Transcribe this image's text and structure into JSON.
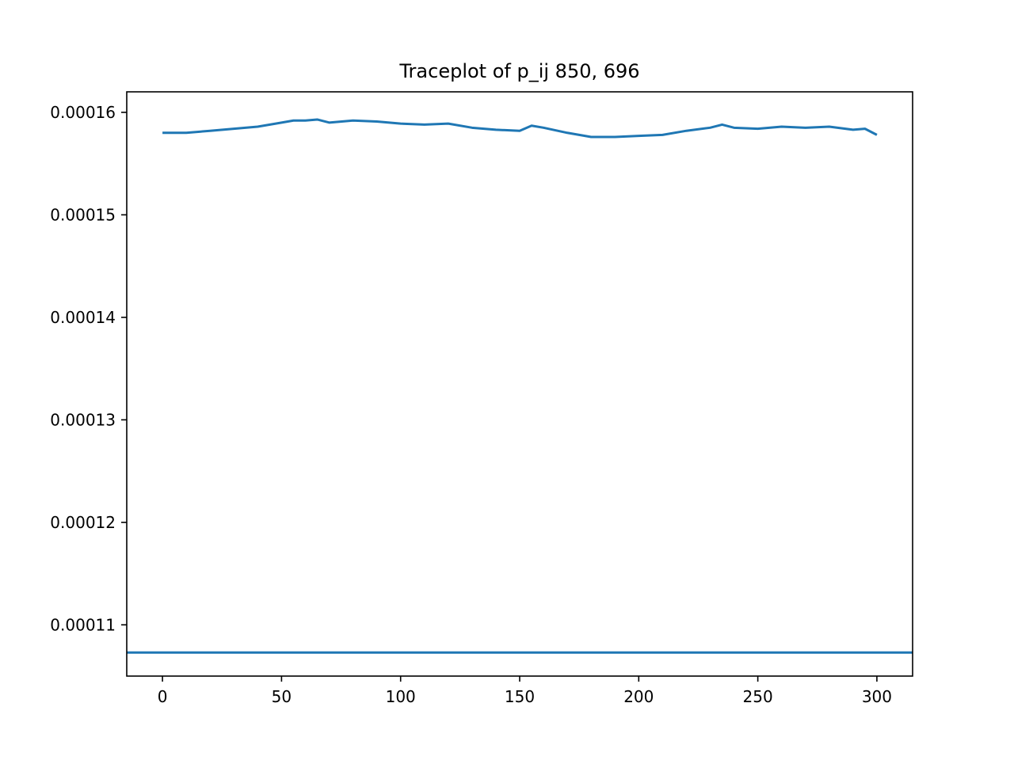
{
  "chart_data": {
    "type": "line",
    "title": "Traceplot of p_ij 850, 696",
    "xlabel": "",
    "ylabel": "",
    "xlim": [
      -15,
      315
    ],
    "ylim": [
      0.000105,
      0.000162
    ],
    "x_ticks": [
      0,
      50,
      100,
      150,
      200,
      250,
      300
    ],
    "x_tick_labels": [
      "0",
      "50",
      "100",
      "150",
      "200",
      "250",
      "300"
    ],
    "y_ticks": [
      0.00011,
      0.00012,
      0.00013,
      0.00014,
      0.00015,
      0.00016
    ],
    "y_tick_labels": [
      "0.00011",
      "0.00012",
      "0.00013",
      "0.00014",
      "0.00015",
      "0.00016"
    ],
    "grid": false,
    "series": [
      {
        "color": "#1f77b4",
        "x": [
          0,
          10,
          20,
          30,
          40,
          50,
          55,
          60,
          65,
          70,
          80,
          90,
          100,
          110,
          120,
          130,
          140,
          150,
          155,
          160,
          170,
          180,
          190,
          200,
          210,
          220,
          230,
          235,
          240,
          250,
          260,
          270,
          280,
          290,
          295,
          300
        ],
        "y": [
          0.000158,
          0.000158,
          0.0001582,
          0.0001584,
          0.0001586,
          0.000159,
          0.0001592,
          0.0001592,
          0.0001593,
          0.000159,
          0.0001592,
          0.0001591,
          0.0001589,
          0.0001588,
          0.0001589,
          0.0001585,
          0.0001583,
          0.0001582,
          0.0001587,
          0.0001585,
          0.000158,
          0.0001576,
          0.0001576,
          0.0001577,
          0.0001578,
          0.0001582,
          0.0001585,
          0.0001588,
          0.0001585,
          0.0001584,
          0.0001586,
          0.0001585,
          0.0001586,
          0.0001583,
          0.0001584,
          0.0001578
        ]
      }
    ],
    "reference_line": {
      "y": 0.0001073,
      "color": "#1f77b4"
    }
  }
}
